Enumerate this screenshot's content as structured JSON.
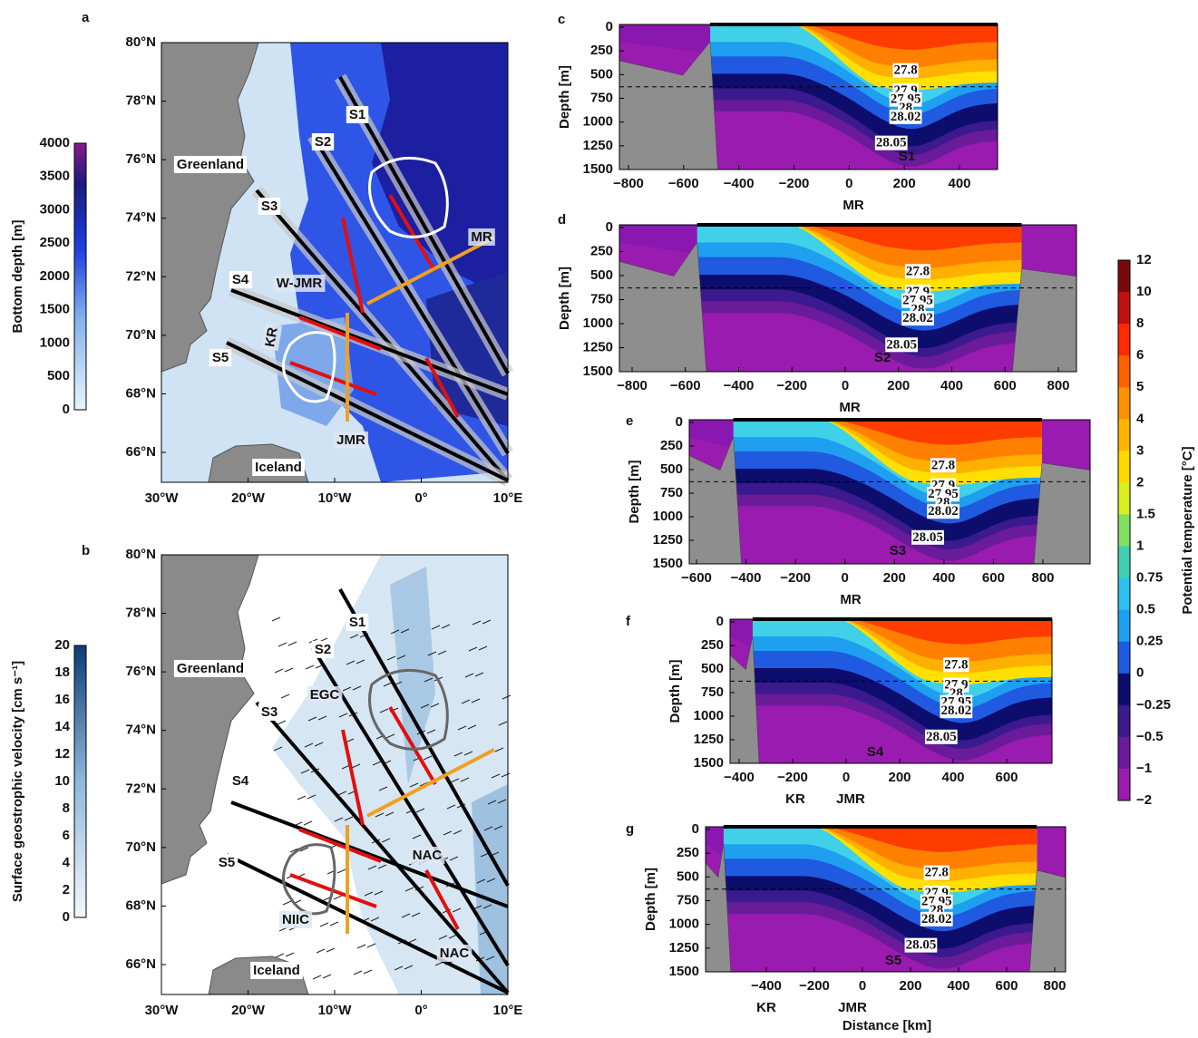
{
  "panels": {
    "a": {
      "letter": "a",
      "lat_ticks": [
        "80°N",
        "78°N",
        "76°N",
        "74°N",
        "72°N",
        "70°N",
        "68°N",
        "66°N"
      ],
      "lon_ticks": [
        "30°W",
        "20°W",
        "10°W",
        "0°",
        "10°E"
      ],
      "colorbar_label": "Bottom depth [m]",
      "colorbar_ticks": [
        "4000",
        "3500",
        "3000",
        "2500",
        "2000",
        "1500",
        "1000",
        "500",
        "0"
      ],
      "labels": [
        "S1",
        "S2",
        "S3",
        "S4",
        "S5",
        "Greenland",
        "Iceland",
        "MR",
        "W-JMR",
        "KR",
        "JMR"
      ]
    },
    "b": {
      "letter": "b",
      "lat_ticks": [
        "80°N",
        "78°N",
        "76°N",
        "74°N",
        "72°N",
        "70°N",
        "68°N",
        "66°N"
      ],
      "lon_ticks": [
        "30°W",
        "20°W",
        "10°W",
        "0°",
        "10°E"
      ],
      "colorbar_label": "Surface geostrophic velocity [cm s⁻¹]",
      "colorbar_ticks": [
        "20",
        "18",
        "16",
        "14",
        "12",
        "10",
        "8",
        "6",
        "4",
        "2",
        "0"
      ],
      "labels": [
        "S1",
        "S2",
        "S3",
        "S4",
        "S5",
        "Greenland",
        "Iceland",
        "EGC",
        "NAC",
        "NIIC",
        "NAC"
      ]
    },
    "c": {
      "letter": "c",
      "x_ticks": [
        "−800",
        "−600",
        "−400",
        "−200",
        "0",
        "200",
        "400"
      ],
      "y_ticks": [
        "0",
        "250",
        "500",
        "750",
        "1000",
        "1250",
        "1500"
      ],
      "y_label": "Depth [m]",
      "section": "S1",
      "ridges": [
        "MR"
      ],
      "isopycnals": [
        "27.8",
        "27.9",
        "27.95",
        "28",
        "28.02",
        "28.05"
      ]
    },
    "d": {
      "letter": "d",
      "x_ticks": [
        "−800",
        "−600",
        "−400",
        "−200",
        "0",
        "200",
        "400",
        "600",
        "800"
      ],
      "y_ticks": [
        "0",
        "250",
        "500",
        "750",
        "1000",
        "1250",
        "1500"
      ],
      "y_label": "Depth [m]",
      "section": "S2",
      "ridges": [
        "MR"
      ],
      "isopycnals": [
        "27.8",
        "27.9",
        "27.95",
        "28",
        "28.02",
        "28.05"
      ]
    },
    "e": {
      "letter": "e",
      "x_ticks": [
        "−600",
        "−400",
        "−200",
        "0",
        "200",
        "400",
        "600",
        "800"
      ],
      "y_ticks": [
        "0",
        "250",
        "500",
        "750",
        "1000",
        "1250",
        "1500"
      ],
      "y_label": "Depth [m]",
      "section": "S3",
      "ridges": [
        "MR"
      ],
      "isopycnals": [
        "27.8",
        "27.9",
        "27.95",
        "28",
        "28.02",
        "28.05"
      ]
    },
    "f": {
      "letter": "f",
      "x_ticks": [
        "−400",
        "−200",
        "0",
        "200",
        "400",
        "600"
      ],
      "y_ticks": [
        "0",
        "250",
        "500",
        "750",
        "1000",
        "1250",
        "1500"
      ],
      "y_label": "Depth [m]",
      "section": "S4",
      "ridges": [
        "KR",
        "JMR"
      ],
      "isopycnals": [
        "27.8",
        "27.9",
        "28",
        "27.95",
        "28.02",
        "28.05"
      ]
    },
    "g": {
      "letter": "g",
      "x_ticks": [
        "−400",
        "−200",
        "0",
        "200",
        "400",
        "600",
        "800"
      ],
      "y_ticks": [
        "0",
        "250",
        "500",
        "750",
        "1000",
        "1250",
        "1500"
      ],
      "y_label": "Depth [m]",
      "section": "S5",
      "ridges": [
        "KR",
        "JMR"
      ],
      "isopycnals": [
        "27.8",
        "27.9",
        "27.95",
        "28",
        "28.02",
        "28.05"
      ]
    }
  },
  "temperature_colorbar": {
    "label": "Potential temperature [°C]",
    "ticks": [
      "12",
      "10",
      "8",
      "6",
      "5",
      "4",
      "3",
      "2",
      "1.5",
      "1",
      "0.75",
      "0.5",
      "0.25",
      "0",
      "−0.25",
      "−0.5",
      "−1",
      "−2"
    ]
  },
  "x_label": "Distance [km]"
}
